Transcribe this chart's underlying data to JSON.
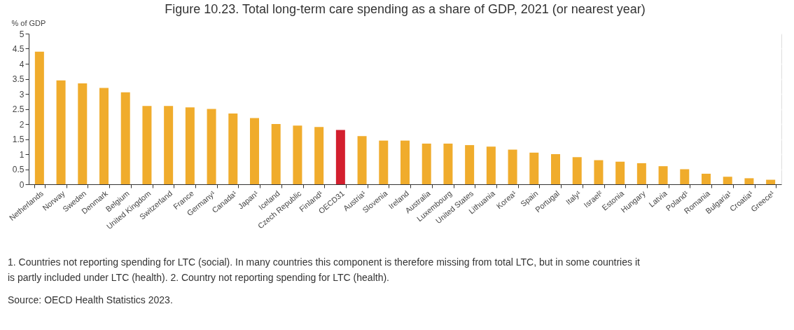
{
  "chart_data": {
    "type": "bar",
    "title": "Figure 10.23. Total long-term care spending as a share of GDP, 2021 (or nearest year)",
    "ylabel": "% of GDP",
    "categories": [
      "Netherlands",
      "Norway",
      "Sweden",
      "Denmark",
      "Belgium",
      "United Kingdom",
      "Switzerland",
      "France",
      "Germany¹",
      "Canada¹",
      "Japan¹",
      "Iceland",
      "Czech Republic",
      "Finland¹",
      "OECD31",
      "Austria¹",
      "Slovenia",
      "Ireland",
      "Australia",
      "Luxembourg",
      "United States",
      "Lithuania",
      "Korea¹",
      "Spain",
      "Portugal",
      "Italy¹",
      "Israel²",
      "Estonia",
      "Hungary",
      "Latvia",
      "Poland¹",
      "Romania",
      "Bulgaria¹",
      "Croatia¹",
      "Greece¹"
    ],
    "values": [
      4.4,
      3.45,
      3.35,
      3.2,
      3.05,
      2.6,
      2.6,
      2.55,
      2.5,
      2.35,
      2.2,
      2.0,
      1.95,
      1.9,
      1.8,
      1.6,
      1.45,
      1.45,
      1.35,
      1.35,
      1.3,
      1.25,
      1.15,
      1.05,
      1.0,
      0.9,
      0.8,
      0.75,
      0.7,
      0.6,
      0.5,
      0.35,
      0.25,
      0.2,
      0.15
    ],
    "colors": [
      "#f0ac2c",
      "#f0ac2c",
      "#f0ac2c",
      "#f0ac2c",
      "#f0ac2c",
      "#f0ac2c",
      "#f0ac2c",
      "#f0ac2c",
      "#f0ac2c",
      "#f0ac2c",
      "#f0ac2c",
      "#f0ac2c",
      "#f0ac2c",
      "#f0ac2c",
      "#d31f2e",
      "#f0ac2c",
      "#f0ac2c",
      "#f0ac2c",
      "#f0ac2c",
      "#f0ac2c",
      "#f0ac2c",
      "#f0ac2c",
      "#f0ac2c",
      "#f0ac2c",
      "#f0ac2c",
      "#f0ac2c",
      "#f0ac2c",
      "#f0ac2c",
      "#f0ac2c",
      "#f0ac2c",
      "#f0ac2c",
      "#f0ac2c",
      "#f0ac2c",
      "#f0ac2c",
      "#f0ac2c"
    ],
    "ylim": [
      0,
      5
    ],
    "yticks": [
      0,
      0.5,
      1,
      1.5,
      2,
      2.5,
      3,
      3.5,
      4,
      4.5,
      5
    ],
    "grid": true,
    "annotations": [
      "1. Countries not reporting spending for LTC (social). In many countries this component is therefore missing from total LTC, but in some countries it is partly included under LTC (health). 2. Country not reporting spending for LTC (health).",
      "Source: OECD Health Statistics 2023."
    ]
  }
}
